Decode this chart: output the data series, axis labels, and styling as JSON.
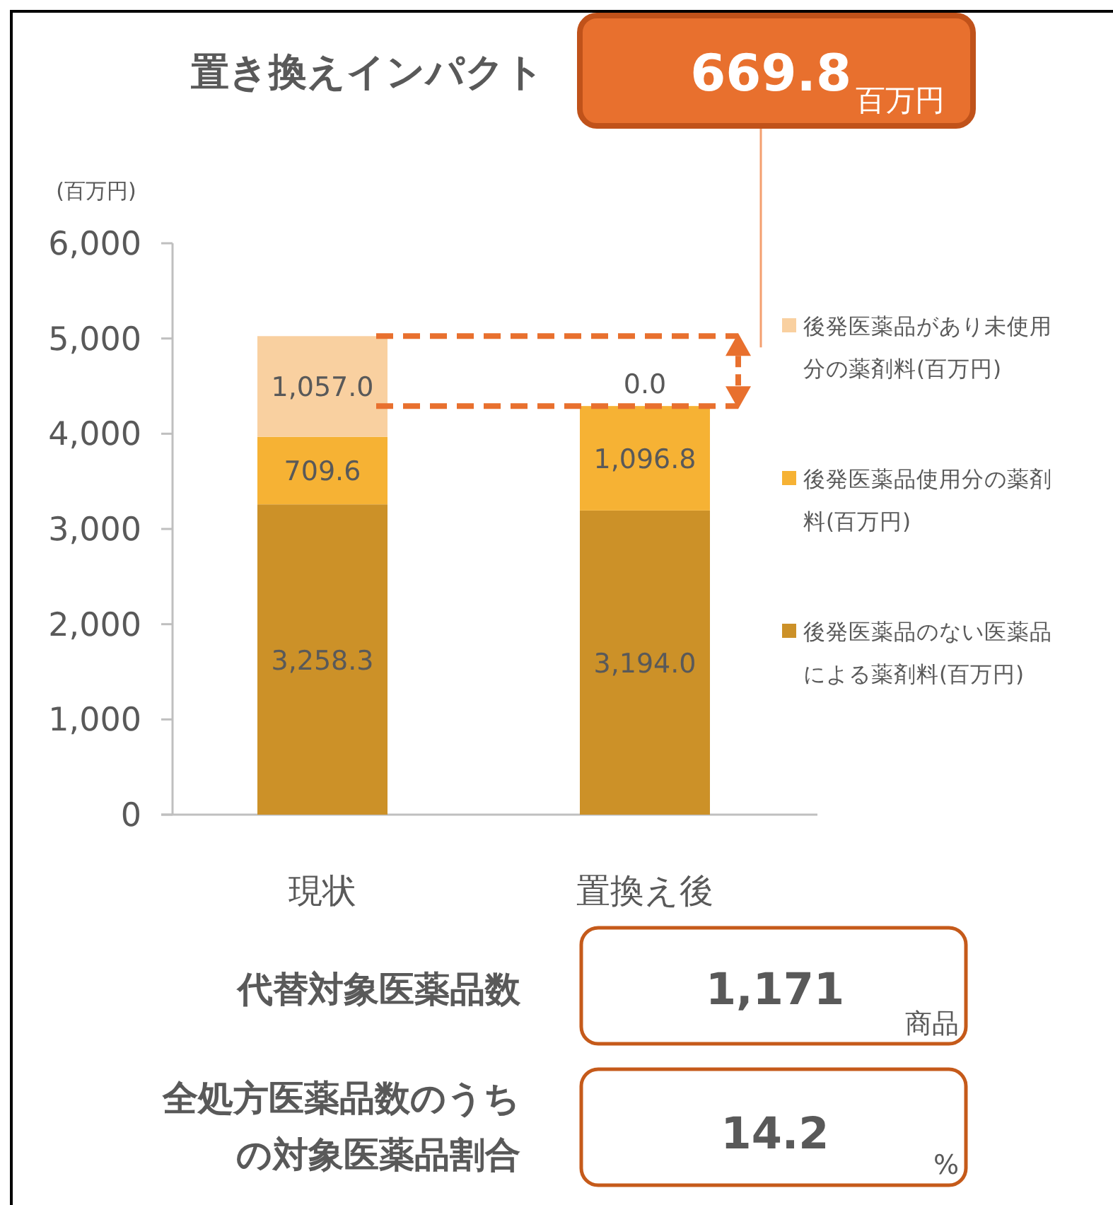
{
  "chart_data": {
    "type": "bar",
    "title": "置き換えインパクト",
    "ylabel": "(百万円)",
    "categories": [
      "現状",
      "置換え後"
    ],
    "stacked": true,
    "legend": "right",
    "data_labels": false,
    "grid": false,
    "ylim": [
      0,
      6000
    ],
    "yticks": [
      0,
      {
        "value": 1000,
        "label": "1,000"
      },
      {
        "value": 2000,
        "label": "2,000"
      },
      {
        "value": 3000,
        "label": "3,000"
      },
      {
        "value": 4000,
        "label": "4,000"
      },
      {
        "value": 5000,
        "label": "5,000"
      },
      {
        "value": 6000,
        "label": "6,000"
      }
    ],
    "series": [
      {
        "name": "後発医薬品のない医薬品による薬剤料(百万円)",
        "color": "#cc9128",
        "values": [
          3258.3,
          3194.0
        ],
        "value_labels": [
          "3,258.3",
          "3,194.0"
        ]
      },
      {
        "name": "後発医薬品使用分の薬剤料(百万円)",
        "color": "#f6b234",
        "values": [
          709.6,
          1096.8
        ],
        "value_labels": [
          "709.6",
          "1,096.8"
        ]
      },
      {
        "name": "後発医薬品があり未使用分の薬剤料(百万円)",
        "color": "#f9d0a0",
        "values": [
          1057.0,
          0.0
        ],
        "value_labels": [
          "1,057.0",
          "0.0"
        ]
      }
    ],
    "ref_lines": [
      {
        "axis": "y",
        "value": 5024.9,
        "color": "#e8702e",
        "line_style": "dashed"
      },
      {
        "axis": "y",
        "value": 4290.8,
        "color": "#e8702e",
        "line_style": "dashed"
      }
    ],
    "annotations": [
      "669.8",
      "百万円",
      "代替対象医薬品数",
      "1,171",
      "商品",
      "全処方医薬品数のうちの対象医薬品割合",
      "14.2",
      "%"
    ]
  }
}
